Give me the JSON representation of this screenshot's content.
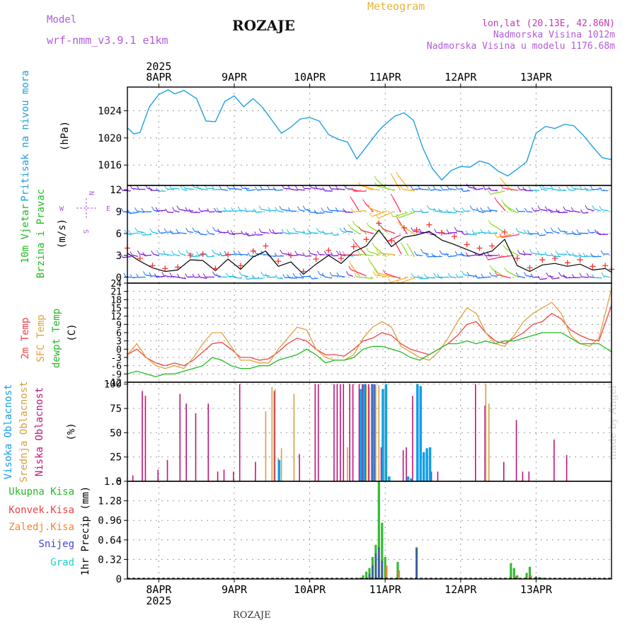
{
  "header": {
    "model_label": "Model",
    "model_name": "wrf-nmm_v3.9.1 e1km",
    "location": "ROZAJE",
    "meteogram": "Meteogram",
    "lonlat": "lon,lat (20.13E, 42.86N)",
    "elevation": "Nadmorska Visina 1012m",
    "model_elevation": "Nadmorska Visina u modelu 1176.68m",
    "footer": "ROZAJE",
    "credit": "made by Angel",
    "colors": {
      "model": "#b25ad9",
      "meteogram": "#e8b33c",
      "info": "#b25ad9",
      "lonlat": "#c03bb5"
    }
  },
  "axis": {
    "year": "2025",
    "days": [
      "8APR",
      "9APR",
      "10APR",
      "11APR",
      "12APR",
      "13APR"
    ],
    "hours_range": [
      -10,
      144
    ]
  },
  "chart_data": [
    {
      "type": "line",
      "panel": "pressure",
      "ylabel": "Pritisak na nivou mora",
      "unit": "(hPa)",
      "yticks": [
        "1016",
        "1020",
        "1024"
      ],
      "ylim": [
        1013,
        1027.5
      ],
      "color": "#1ea0e0",
      "x": [
        -10,
        -8,
        -6,
        -3,
        0,
        3,
        5,
        8,
        12,
        15,
        18,
        21,
        24,
        27,
        30,
        33,
        36,
        39,
        42,
        45,
        48,
        51,
        54,
        57,
        60,
        63,
        66,
        70,
        72,
        75,
        78,
        81,
        84,
        87,
        90,
        93,
        96,
        99,
        102,
        105,
        108,
        111,
        114,
        117,
        120,
        123,
        126,
        129,
        132,
        135,
        138,
        141,
        144
      ],
      "series": [
        {
          "values": [
            1021.5,
            1020.6,
            1020.8,
            1024.6,
            1026.4,
            1027.1,
            1026.5,
            1027.0,
            1025.8,
            1022.5,
            1022.4,
            1025.4,
            1026.2,
            1024.6,
            1025.8,
            1024.5,
            1022.6,
            1020.7,
            1021.6,
            1022.8,
            1023.0,
            1022.5,
            1020.5,
            1019.8,
            1019.4,
            1016.9,
            1018.7,
            1021.1,
            1022.0,
            1023.2,
            1023.7,
            1022.6,
            1018.5,
            1015.5,
            1013.8,
            1015.2,
            1015.8,
            1015.7,
            1016.6,
            1016.2,
            1015.1,
            1014.4,
            1015.4,
            1016.5,
            1020.7,
            1021.7,
            1021.4,
            1022.0,
            1021.8,
            1020.4,
            1018.7,
            1017.1,
            1016.8
          ]
        }
      ]
    },
    {
      "type": "line",
      "panel": "wind",
      "ylabel": "10m Vjetar",
      "ylabel2": "Brzina i Pravac",
      "unit": "(m/s)",
      "yticks": [
        "0",
        "3",
        "6",
        "9",
        "12"
      ],
      "ylim": [
        -0.8,
        12.6
      ],
      "compass": [
        "N",
        "W",
        "E",
        "S"
      ],
      "x": [
        -10,
        -6,
        -2,
        2,
        6,
        10,
        14,
        18,
        22,
        26,
        30,
        34,
        38,
        42,
        46,
        50,
        54,
        58,
        62,
        66,
        70,
        74,
        78,
        82,
        86,
        90,
        94,
        98,
        102,
        106,
        110,
        114,
        118,
        122,
        126,
        130,
        134,
        138,
        142,
        144
      ],
      "series": [
        {
          "values": [
            3.3,
            2.2,
            1.3,
            0.8,
            1.0,
            2.4,
            2.3,
            0.9,
            2.5,
            1.1,
            2.8,
            3.6,
            1.5,
            2.1,
            0.4,
            1.8,
            3.0,
            1.9,
            3.5,
            4.3,
            6.5,
            4.2,
            5.5,
            5.8,
            6.3,
            5.1,
            4.5,
            3.8,
            3.1,
            3.6,
            5.2,
            1.6,
            0.8,
            1.7,
            1.9,
            1.5,
            1.8,
            1.0,
            1.2,
            0.7
          ],
          "color": "#000000"
        },
        {
          "values": [
            4.0,
            2.6,
            1.6,
            1.2,
            1.4,
            3.0,
            3.2,
            1.2,
            3.1,
            1.6,
            3.6,
            4.3,
            2.2,
            3.0,
            0.8,
            2.5,
            3.7,
            2.6,
            4.2,
            5.2,
            7.4,
            5.0,
            6.8,
            6.5,
            7.2,
            6.1,
            5.6,
            4.5,
            4.0,
            4.3,
            6.2,
            2.6,
            1.3,
            2.4,
            2.6,
            2.0,
            2.4,
            1.5,
            1.6,
            1.1
          ],
          "color": "#ff3030"
        }
      ]
    },
    {
      "type": "line",
      "panel": "temperature",
      "ylabels": [
        "2m Temp",
        "SFC Temp",
        "dewpt Temp"
      ],
      "unit": "(C)",
      "yticks": [
        "-12",
        "-9",
        "-6",
        "-3",
        "0",
        "3",
        "6",
        "9",
        "12",
        "15",
        "18",
        "21",
        "24"
      ],
      "ylim": [
        -12,
        24
      ],
      "x": [
        -10,
        -7,
        -4,
        -1,
        2,
        5,
        8,
        11,
        14,
        17,
        20,
        23,
        26,
        29,
        32,
        35,
        38,
        41,
        44,
        47,
        50,
        53,
        56,
        59,
        62,
        65,
        68,
        71,
        74,
        77,
        80,
        83,
        86,
        89,
        92,
        95,
        98,
        101,
        104,
        107,
        110,
        113,
        116,
        119,
        122,
        125,
        128,
        131,
        134,
        137,
        140,
        144
      ],
      "series": [
        {
          "name": "2m Temp",
          "color": "#ee4444",
          "values": [
            -2,
            0,
            -3,
            -5,
            -6,
            -5,
            -6,
            -4,
            -1,
            2,
            2.5,
            0,
            -3,
            -3,
            -4,
            -3.5,
            -1,
            2,
            4,
            3,
            0,
            -2,
            -2,
            -2.5,
            0,
            3,
            4,
            6,
            5,
            2,
            0,
            -1,
            -2,
            0,
            2,
            5,
            9,
            10,
            6,
            3,
            2,
            4,
            6,
            9,
            10,
            13,
            11,
            7,
            5,
            3.5,
            3,
            16
          ]
        },
        {
          "name": "SFC Temp",
          "color": "#e0a040",
          "values": [
            -2,
            2,
            -3,
            -6,
            -7,
            -6,
            -7,
            -3,
            2,
            6,
            6,
            1,
            -4,
            -4,
            -5,
            -5,
            0,
            4,
            8,
            7,
            0,
            -3,
            -4,
            -4,
            -2,
            4,
            8,
            10,
            8,
            1,
            -1,
            -3,
            -4,
            -1,
            4,
            10,
            15,
            13,
            6,
            2,
            1,
            5,
            10,
            13,
            15,
            17,
            13,
            5,
            2,
            1,
            4,
            22
          ]
        },
        {
          "name": "dewpt Temp",
          "color": "#22bb22",
          "values": [
            -9,
            -8,
            -9,
            -10,
            -9,
            -9,
            -8,
            -7,
            -6,
            -3,
            -4,
            -6,
            -7,
            -7,
            -6,
            -6,
            -4,
            -3,
            -2,
            0,
            -2,
            -5,
            -4,
            -4,
            -3,
            0,
            1,
            1,
            0,
            -1,
            -3,
            -4,
            -2,
            0,
            2,
            2,
            3,
            2,
            3,
            2,
            3,
            3,
            4,
            5,
            6,
            6,
            6,
            4,
            2,
            2,
            2,
            -1
          ]
        }
      ]
    },
    {
      "type": "bar",
      "panel": "clouds",
      "ylabels": [
        "Visoka Oblacnost",
        "Srednja Oblacnost",
        "Niska Oblacnost"
      ],
      "unit": "(%)",
      "yticks": [
        "0",
        "25",
        "50",
        "75",
        "100"
      ],
      "ylim": [
        0,
        102
      ],
      "series": [
        {
          "name": "Niska Oblacnost",
          "color": "#c0147a",
          "x": [
            -8,
            -5,
            -4,
            0,
            3,
            7,
            9,
            12,
            16,
            19,
            21,
            24,
            26,
            31,
            37,
            45,
            50,
            51,
            56,
            57,
            58,
            59,
            61,
            62,
            64,
            65,
            66,
            67,
            68,
            69,
            71,
            78,
            79,
            81,
            87,
            89,
            101,
            104,
            110,
            114,
            116,
            118,
            126,
            130
          ],
          "values": [
            6,
            93,
            88,
            12,
            22,
            90,
            80,
            70,
            80,
            10,
            12,
            10,
            100,
            20,
            93,
            28,
            100,
            100,
            100,
            100,
            100,
            100,
            100,
            100,
            100,
            100,
            100,
            100,
            100,
            100,
            35,
            32,
            35,
            88,
            10,
            10,
            100,
            78,
            20,
            63,
            10,
            10,
            43,
            27
          ]
        },
        {
          "name": "Srednja Oblacnost",
          "color": "#d4a040",
          "x": [
            34,
            36,
            37,
            38,
            39,
            43,
            60,
            66,
            67,
            69,
            70,
            72,
            104,
            105
          ],
          "values": [
            72,
            97,
            95,
            24,
            34,
            90,
            35,
            99,
            97,
            99,
            99,
            95,
            100,
            80
          ]
        },
        {
          "name": "Visoka Oblacnost",
          "color": "#10a0e8",
          "x": [
            38,
            64,
            65,
            68,
            71,
            72,
            73,
            79,
            80,
            82,
            83,
            84,
            85,
            86
          ],
          "values": [
            22,
            95,
            100,
            100,
            95,
            100,
            5,
            5,
            3,
            100,
            98,
            30,
            34,
            35
          ]
        }
      ]
    },
    {
      "type": "bar",
      "panel": "precip",
      "ylabels": [
        "Ukupna Kisa",
        "Konvek.Kisa",
        "Zaledj.Kisa",
        "Snijeg",
        "Grad"
      ],
      "label_colors": [
        "#22bb22",
        "#ee4444",
        "#ee8833",
        "#4444cc",
        "#22cccc"
      ],
      "unit": "1hr Precip (mm)",
      "yticks": [
        "0",
        "0.32",
        "0.64",
        "0.96",
        "1.28",
        "1.6"
      ],
      "ylim": [
        0,
        1.6
      ],
      "series": [
        {
          "name": "Ukupna Kisa",
          "color": "#33bb33",
          "x": [
            64,
            65,
            66,
            67,
            68,
            69,
            70,
            71,
            72,
            76,
            82,
            112,
            113,
            114,
            117,
            118,
            120,
            121,
            122
          ],
          "values": [
            0.02,
            0.06,
            0.12,
            0.18,
            0.36,
            0.56,
            1.6,
            0.92,
            0.36,
            0.28,
            0.52,
            0.26,
            0.18,
            0.06,
            0.1,
            0.2,
            0.04,
            0.03,
            0.02
          ]
        },
        {
          "name": "Snijeg",
          "color": "#4455aa",
          "x": [
            67,
            68,
            69,
            70,
            71,
            82,
            120
          ],
          "values": [
            0.08,
            0.22,
            0.42,
            0.52,
            0.3,
            0.5,
            0.04
          ]
        },
        {
          "name": "Zaledj.Kisa",
          "color": "#ee8833",
          "x": [
            72,
            76,
            113,
            118
          ],
          "values": [
            0.22,
            0.14,
            0.05,
            0.06
          ]
        }
      ]
    }
  ]
}
